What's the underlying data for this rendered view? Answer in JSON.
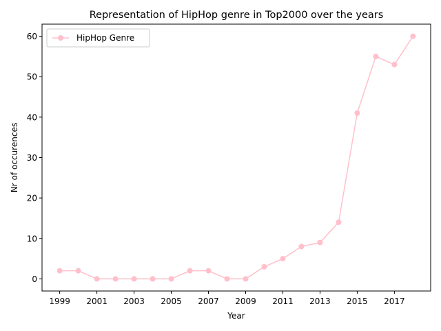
{
  "chart_data": {
    "type": "line",
    "title": "Representation of HipHop genre in Top2000 over the years",
    "xlabel": "Year",
    "ylabel": "Nr of occurences",
    "x": [
      1999,
      2000,
      2001,
      2002,
      2003,
      2004,
      2005,
      2006,
      2007,
      2008,
      2009,
      2010,
      2011,
      2012,
      2013,
      2014,
      2015,
      2016,
      2017,
      2018
    ],
    "series": [
      {
        "name": "HipHop Genre",
        "color": "#ffc0cb",
        "marker": "circle",
        "values": [
          2,
          2,
          0,
          0,
          0,
          0,
          0,
          2,
          2,
          0,
          0,
          3,
          5,
          8,
          9,
          14,
          41,
          55,
          53,
          60
        ]
      }
    ],
    "xticks": [
      1999,
      2001,
      2003,
      2005,
      2007,
      2009,
      2011,
      2013,
      2015,
      2017
    ],
    "yticks": [
      0,
      10,
      20,
      30,
      40,
      50,
      60
    ],
    "xlim": [
      1998.05,
      2018.95
    ],
    "ylim": [
      -3,
      63
    ],
    "grid": false,
    "legend_position": "top-left"
  }
}
